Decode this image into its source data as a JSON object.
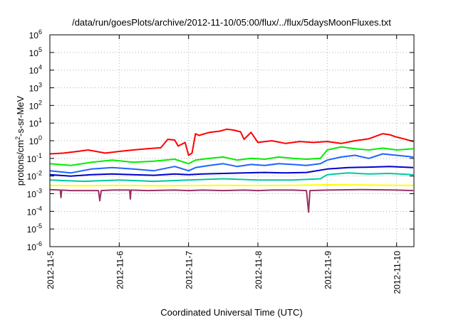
{
  "chart_data": {
    "type": "line",
    "title": "/data/run/goesPlots/archive/2012-11-10/05:00/flux/../flux/5daysMoonFluxes.txt",
    "xlabel": "Coordinated Universal Time (UTC)",
    "ylabel": "protons/cm2-s-sr-MeV",
    "ylabel_parts": {
      "base": "protons/cm",
      "sup": "2",
      "rest": "-s-sr-MeV"
    },
    "yscale": "log",
    "ylim_exp": [
      -6,
      6
    ],
    "xlim_days": [
      0,
      5.25
    ],
    "x_ticks": [
      {
        "label": "2012-11-5",
        "day": 0
      },
      {
        "label": "2012-11-6",
        "day": 1
      },
      {
        "label": "2012-11-7",
        "day": 2
      },
      {
        "label": "2012-11-8",
        "day": 3
      },
      {
        "label": "2012-11-9",
        "day": 4
      },
      {
        "label": "2012-11-10",
        "day": 5
      }
    ],
    "y_ticks": [
      {
        "base": "10",
        "exp": "-6",
        "value": -6
      },
      {
        "base": "10",
        "exp": "-5",
        "value": -5
      },
      {
        "base": "10",
        "exp": "-4",
        "value": -4
      },
      {
        "base": "10",
        "exp": "-3",
        "value": -3
      },
      {
        "base": "10",
        "exp": "-2",
        "value": -2
      },
      {
        "base": "10",
        "exp": "-1",
        "value": -1
      },
      {
        "base": "10",
        "exp": "0",
        "value": 0
      },
      {
        "base": "10",
        "exp": "1",
        "value": 1
      },
      {
        "base": "10",
        "exp": "2",
        "value": 2
      },
      {
        "base": "10",
        "exp": "3",
        "value": 3
      },
      {
        "base": "10",
        "exp": "4",
        "value": 4
      },
      {
        "base": "10",
        "exp": "5",
        "value": 5
      },
      {
        "base": "10",
        "exp": "6",
        "value": 6
      }
    ],
    "grid": true,
    "series": [
      {
        "color": "#ff0000",
        "x": [
          0,
          0.2,
          0.4,
          0.55,
          0.8,
          1.0,
          1.2,
          1.4,
          1.6,
          1.7,
          1.8,
          1.85,
          1.95,
          2.0,
          2.05,
          2.1,
          2.15,
          2.3,
          2.45,
          2.55,
          2.65,
          2.75,
          2.8,
          2.9,
          3.0,
          3.2,
          3.4,
          3.6,
          3.8,
          4.0,
          4.2,
          4.4,
          4.6,
          4.8,
          4.9,
          5.0,
          5.1,
          5.24
        ],
        "y": [
          0.18,
          0.2,
          0.25,
          0.3,
          0.2,
          0.25,
          0.3,
          0.35,
          0.4,
          1.2,
          1.1,
          0.5,
          0.8,
          0.15,
          0.2,
          2.5,
          2.0,
          3.0,
          3.5,
          4.5,
          4.0,
          3.2,
          1.2,
          3.0,
          0.8,
          1.0,
          0.7,
          0.9,
          0.8,
          0.9,
          0.7,
          1.0,
          1.3,
          2.5,
          2.2,
          1.6,
          1.3,
          0.9
        ]
      },
      {
        "color": "#00ee00",
        "x": [
          0,
          0.3,
          0.6,
          0.9,
          1.2,
          1.5,
          1.8,
          2.0,
          2.1,
          2.3,
          2.5,
          2.7,
          2.9,
          3.1,
          3.3,
          3.5,
          3.7,
          3.9,
          4.0,
          4.2,
          4.4,
          4.6,
          4.8,
          5.0,
          5.24
        ],
        "y": [
          0.05,
          0.04,
          0.06,
          0.08,
          0.06,
          0.07,
          0.09,
          0.05,
          0.08,
          0.1,
          0.12,
          0.08,
          0.1,
          0.09,
          0.12,
          0.1,
          0.09,
          0.1,
          0.3,
          0.45,
          0.35,
          0.3,
          0.38,
          0.3,
          0.35
        ]
      },
      {
        "color": "#1e64ff",
        "x": [
          0,
          0.3,
          0.6,
          0.9,
          1.2,
          1.5,
          1.8,
          2.0,
          2.1,
          2.3,
          2.5,
          2.7,
          2.9,
          3.1,
          3.3,
          3.5,
          3.7,
          3.9,
          4.0,
          4.2,
          4.4,
          4.6,
          4.8,
          5.0,
          5.24
        ],
        "y": [
          0.02,
          0.015,
          0.025,
          0.03,
          0.025,
          0.02,
          0.035,
          0.02,
          0.03,
          0.04,
          0.05,
          0.035,
          0.045,
          0.04,
          0.05,
          0.045,
          0.04,
          0.05,
          0.08,
          0.12,
          0.15,
          0.1,
          0.18,
          0.15,
          0.12
        ]
      },
      {
        "color": "#0000cc",
        "x": [
          0,
          0.3,
          0.6,
          0.9,
          1.2,
          1.5,
          1.8,
          2.0,
          2.2,
          2.5,
          2.8,
          3.1,
          3.4,
          3.7,
          4.0,
          4.3,
          4.6,
          4.9,
          5.24
        ],
        "y": [
          0.012,
          0.01,
          0.012,
          0.013,
          0.012,
          0.011,
          0.013,
          0.012,
          0.013,
          0.014,
          0.015,
          0.016,
          0.015,
          0.016,
          0.025,
          0.03,
          0.032,
          0.035,
          0.03
        ]
      },
      {
        "color": "#00c8a0",
        "x": [
          0,
          0.5,
          1.0,
          1.5,
          2.0,
          2.5,
          3.0,
          3.5,
          3.9,
          4.0,
          4.3,
          4.6,
          4.9,
          5.24
        ],
        "y": [
          0.006,
          0.005,
          0.006,
          0.005,
          0.006,
          0.007,
          0.006,
          0.006,
          0.007,
          0.012,
          0.015,
          0.013,
          0.014,
          0.012
        ]
      },
      {
        "color": "#ffff00",
        "x": [
          0,
          0.5,
          1.0,
          1.5,
          2.0,
          2.5,
          3.0,
          3.5,
          4.0,
          4.5,
          5.0,
          5.24
        ],
        "y": [
          0.003,
          0.0028,
          0.003,
          0.0028,
          0.0029,
          0.003,
          0.0029,
          0.003,
          0.0032,
          0.0031,
          0.003,
          0.003
        ]
      },
      {
        "color": "#993366",
        "x": [
          0,
          0.15,
          0.16,
          0.17,
          0.3,
          0.7,
          0.72,
          0.74,
          0.9,
          1.15,
          1.16,
          1.17,
          1.4,
          1.8,
          2.0,
          2.2,
          2.5,
          2.8,
          3.0,
          3.2,
          3.5,
          3.7,
          3.73,
          3.75,
          4.0,
          4.5,
          5.0,
          5.24
        ],
        "y": [
          0.0017,
          0.0016,
          0.0006,
          0.0016,
          0.0015,
          0.0015,
          0.0004,
          0.0015,
          0.0016,
          0.0016,
          0.0005,
          0.0016,
          0.0015,
          0.0016,
          0.0015,
          0.0016,
          0.0015,
          0.0016,
          0.0015,
          0.0016,
          0.0016,
          0.0015,
          9e-05,
          0.0015,
          0.0016,
          0.0017,
          0.0016,
          0.0015
        ]
      }
    ]
  }
}
